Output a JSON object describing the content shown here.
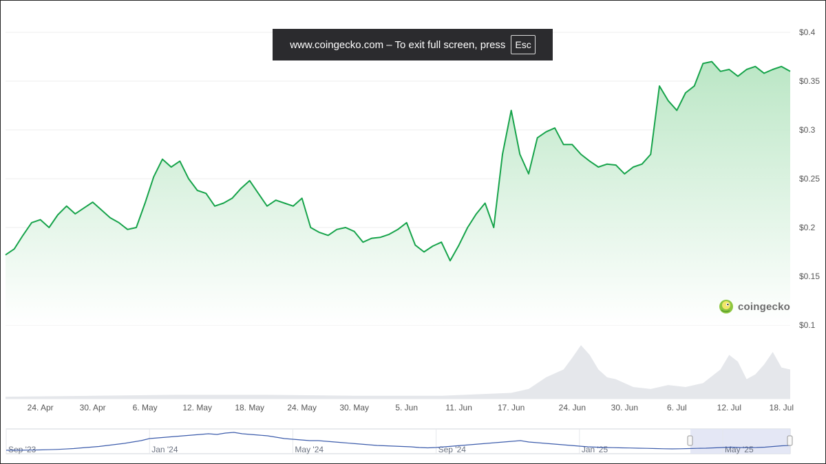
{
  "banner": {
    "message": "www.coingecko.com – To exit full screen, press",
    "key": "Esc"
  },
  "brand": {
    "name": "coingecko",
    "logo_icon": "gecko-logo-icon"
  },
  "colors": {
    "line": "#16a34a",
    "area_top": "#b7e5c2",
    "volume": "#e5e7eb",
    "navigator_line": "#3b5bab",
    "navigator_selection": "#dfe3f3"
  },
  "chart_data": {
    "type": "area",
    "y_ticks": [
      "$0.4",
      "$0.35",
      "$0.3",
      "$0.25",
      "$0.2",
      "$0.15",
      "$0.1"
    ],
    "y_values": [
      0.4,
      0.35,
      0.3,
      0.25,
      0.2,
      0.15,
      0.1
    ],
    "ylim": [
      0.1,
      0.4
    ],
    "grid": true,
    "x_ticks": [
      "24. Apr",
      "30. Apr",
      "6. May",
      "12. May",
      "18. May",
      "24. May",
      "30. May",
      "5. Jun",
      "11. Jun",
      "17. Jun",
      "24. Jun",
      "30. Jun",
      "6. Jul",
      "12. Jul",
      "18. Jul"
    ],
    "x_tick_days": [
      24,
      30,
      36,
      42,
      48,
      54,
      60,
      66,
      72,
      78,
      85,
      91,
      97,
      103,
      109
    ],
    "series": [
      {
        "x_days": [
          20,
          21,
          22,
          23,
          24,
          25,
          26,
          27,
          28,
          29,
          30,
          31,
          32,
          33,
          34,
          35,
          36,
          37,
          38,
          39,
          40,
          41,
          42,
          43,
          44,
          45,
          46,
          47,
          48,
          49,
          50,
          51,
          52,
          53,
          54,
          55,
          56,
          57,
          58,
          59,
          60,
          61,
          62,
          63,
          64,
          65,
          66,
          67,
          68,
          69,
          70,
          71,
          72,
          73,
          74,
          75,
          76,
          77,
          78,
          79,
          80,
          81,
          82,
          83,
          84,
          85,
          86,
          87,
          88,
          89,
          90,
          91,
          92,
          93,
          94,
          95,
          96,
          97,
          98,
          99,
          100,
          101,
          102,
          103,
          104,
          105,
          106,
          107,
          108,
          109,
          110
        ],
        "price_usd": [
          0.172,
          0.178,
          0.192,
          0.205,
          0.208,
          0.2,
          0.213,
          0.222,
          0.214,
          0.22,
          0.226,
          0.218,
          0.21,
          0.205,
          0.198,
          0.2,
          0.225,
          0.252,
          0.27,
          0.262,
          0.268,
          0.25,
          0.238,
          0.235,
          0.222,
          0.225,
          0.23,
          0.24,
          0.248,
          0.235,
          0.222,
          0.228,
          0.225,
          0.222,
          0.23,
          0.2,
          0.195,
          0.192,
          0.198,
          0.2,
          0.196,
          0.185,
          0.189,
          0.19,
          0.193,
          0.198,
          0.205,
          0.182,
          0.175,
          0.181,
          0.185,
          0.166,
          0.182,
          0.2,
          0.214,
          0.225,
          0.2,
          0.275,
          0.32,
          0.275,
          0.255,
          0.292,
          0.298,
          0.302,
          0.285,
          0.285,
          0.275,
          0.268,
          0.262,
          0.265,
          0.264,
          0.255,
          0.262,
          0.265,
          0.275,
          0.345,
          0.33,
          0.32,
          0.338,
          0.345,
          0.368,
          0.37,
          0.36,
          0.362,
          0.355,
          0.362,
          0.365,
          0.358,
          0.362,
          0.365,
          0.36
        ]
      }
    ],
    "volume": {
      "x_days": [
        20,
        30,
        40,
        50,
        60,
        70,
        78,
        80,
        82,
        84,
        85,
        86,
        87,
        88,
        89,
        90,
        92,
        94,
        96,
        98,
        100,
        102,
        103,
        104,
        105,
        106,
        107,
        108,
        109,
        110
      ],
      "values": [
        2,
        3,
        4,
        4,
        3,
        3,
        6,
        10,
        22,
        30,
        42,
        55,
        45,
        30,
        22,
        20,
        12,
        10,
        14,
        12,
        16,
        30,
        45,
        38,
        20,
        25,
        35,
        48,
        32,
        30
      ]
    }
  },
  "navigator": {
    "tick_labels": [
      "Sep '23",
      "Jan '24",
      "May '24",
      "Sep '24",
      "Jan '25",
      "May '25"
    ],
    "tick_index": [
      0,
      17,
      34,
      51,
      68,
      85
    ],
    "values": [
      1,
      1.2,
      1.1,
      1.3,
      1.5,
      1.8,
      2.2,
      2.8,
      3.5,
      4.5,
      5.5,
      6.5,
      8,
      9.5,
      11,
      13,
      15,
      18,
      19,
      20,
      21,
      22,
      23,
      24,
      25,
      24,
      26,
      27,
      25,
      24,
      23,
      22,
      20,
      18,
      17,
      16,
      15,
      15,
      14,
      13,
      12,
      11,
      10,
      9,
      8,
      7.5,
      7,
      6.5,
      6,
      5,
      4.5,
      5,
      6,
      7,
      8,
      9,
      10,
      11,
      12,
      13,
      14,
      15,
      13,
      12,
      11,
      10,
      9,
      8,
      7,
      6,
      5.5,
      5,
      4.8,
      4.5,
      4.3,
      4,
      3.8,
      3.5,
      3.2,
      3,
      3.2,
      3.5,
      3.8,
      4,
      4.5,
      5,
      5.5,
      5,
      4.8,
      5,
      5.5,
      6.5,
      7.5,
      8
    ]
  }
}
